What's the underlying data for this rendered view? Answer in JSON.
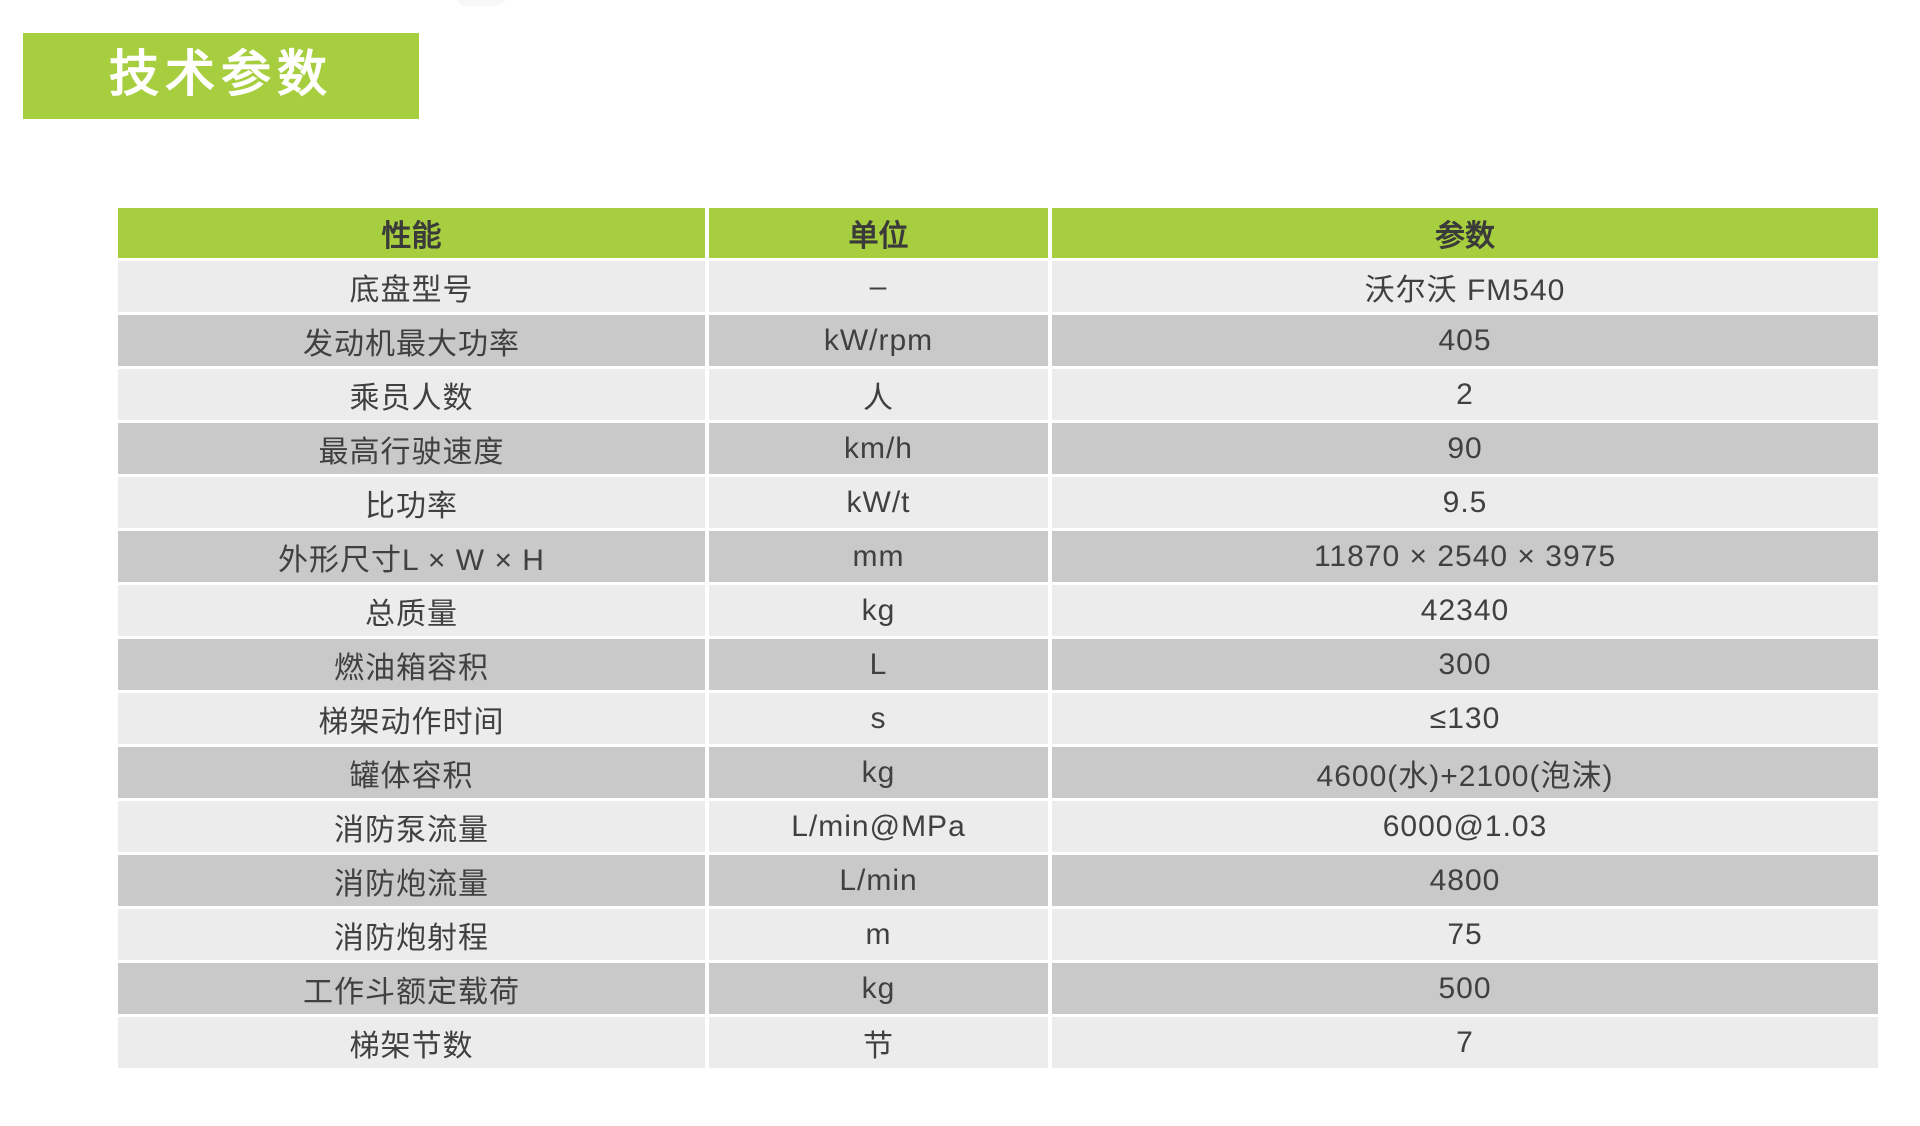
{
  "page": {
    "title_badge": "技术参数"
  },
  "colors": {
    "accent_green": "#a6ce3e",
    "row_light": "#ececec",
    "row_dark": "#c9c9c9",
    "text_dark": "#404040",
    "badge_text": "#ffffff"
  },
  "table": {
    "headers": {
      "performance": "性能",
      "unit": "单位",
      "parameter": "参数"
    },
    "rows": [
      {
        "name": "底盘型号",
        "unit": "–",
        "value": "沃尔沃 FM540"
      },
      {
        "name": "发动机最大功率",
        "unit": "kW/rpm",
        "value": "405"
      },
      {
        "name": "乘员人数",
        "unit": "人",
        "value": "2"
      },
      {
        "name": "最高行驶速度",
        "unit": "km/h",
        "value": "90"
      },
      {
        "name": "比功率",
        "unit": "kW/t",
        "value": "9.5"
      },
      {
        "name": "外形尺寸L × W × H",
        "unit": "mm",
        "value": "11870 × 2540 × 3975"
      },
      {
        "name": "总质量",
        "unit": "kg",
        "value": "42340"
      },
      {
        "name": "燃油箱容积",
        "unit": "L",
        "value": "300"
      },
      {
        "name": "梯架动作时间",
        "unit": "s",
        "value": "≤130"
      },
      {
        "name": "罐体容积",
        "unit": "kg",
        "value": "4600(水)+2100(泡沫)"
      },
      {
        "name": "消防泵流量",
        "unit": "L/min@MPa",
        "value": "6000@1.03"
      },
      {
        "name": "消防炮流量",
        "unit": "L/min",
        "value": "4800"
      },
      {
        "name": "消防炮射程",
        "unit": "m",
        "value": "75"
      },
      {
        "name": "工作斗额定载荷",
        "unit": "kg",
        "value": "500"
      },
      {
        "name": "梯架节数",
        "unit": "节",
        "value": "7"
      }
    ]
  }
}
